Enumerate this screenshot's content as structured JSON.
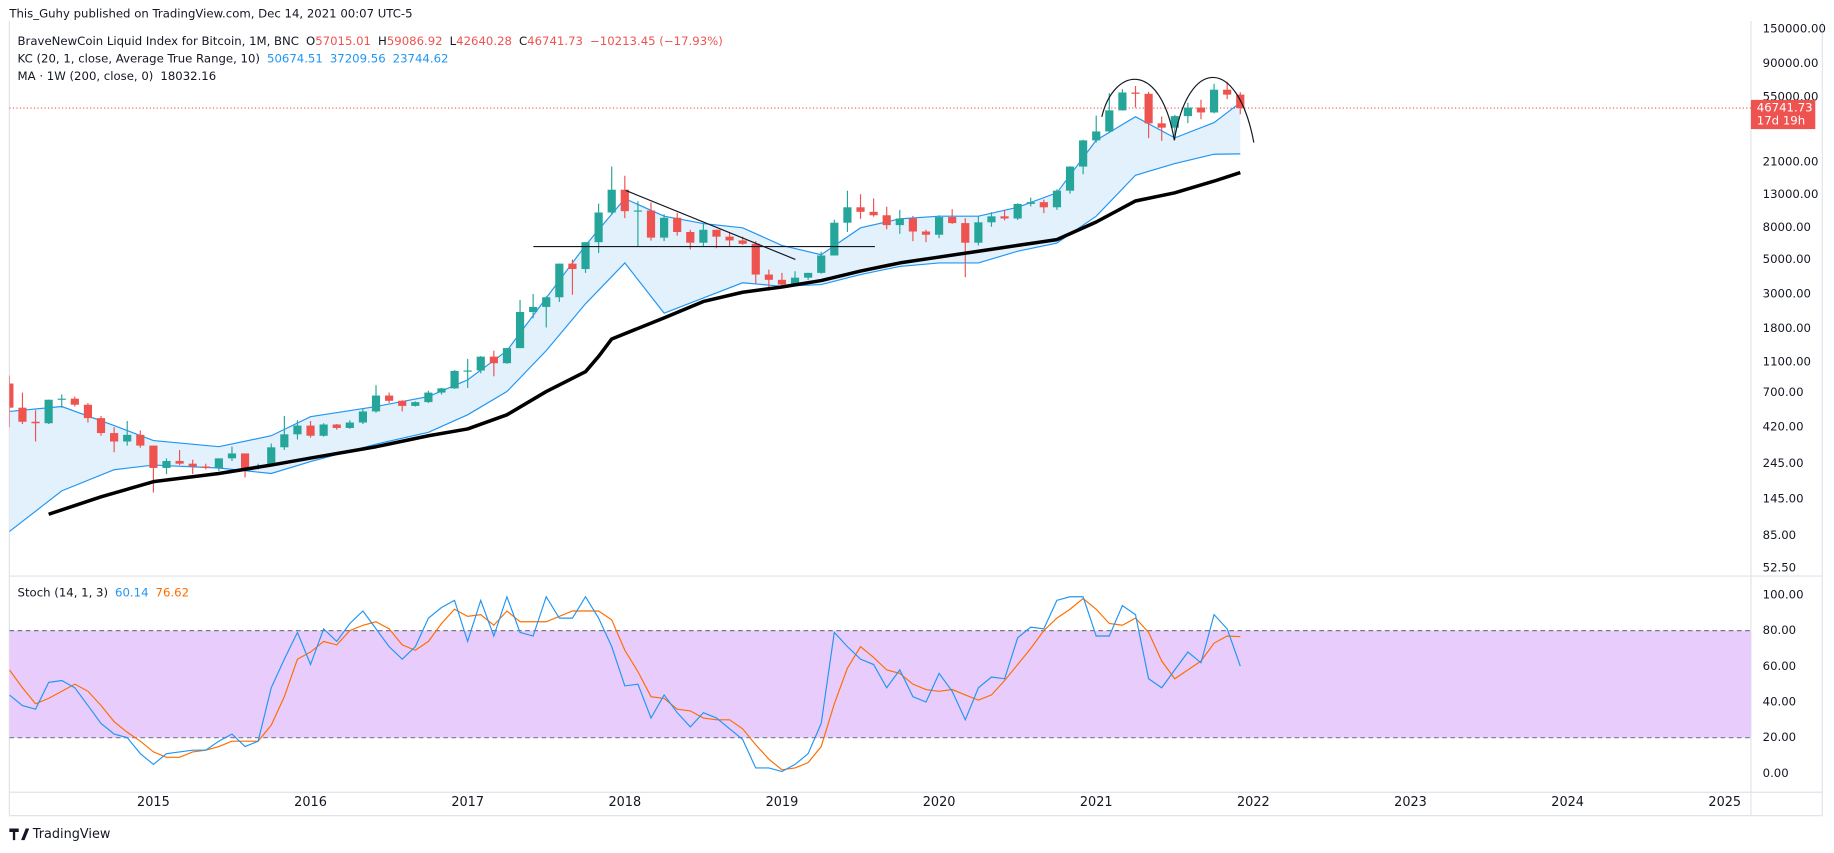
{
  "header": "This_Guhy published on TradingView.com, Dec 14, 2021 00:07 UTC-5",
  "footer": "TradingView",
  "chart_data": {
    "type": "candlestick",
    "log_scale": true,
    "grid": false,
    "up_color": "#26a69a",
    "down_color": "#ef5350",
    "legend": {
      "symbol": "BraveNewCoin Liquid Index for Bitcoin, 1M, BNC",
      "ohlc_letters": [
        "O",
        "H",
        "L",
        "C"
      ],
      "change": "−10213.45 (−17.93%)",
      "kc_label": "KC (20, 1, close, Average True Range, 10)",
      "kc_basis": 37209.56,
      "ma_label": "MA · 1W (200, close, 0)"
    },
    "countdown": "17d 19h",
    "xlim": [
      "2014-02",
      "2025-03"
    ],
    "xticks": [
      "2015",
      "2016",
      "2017",
      "2018",
      "2019",
      "2020",
      "2021",
      "2022",
      "2023",
      "2024",
      "2025"
    ],
    "ylim": [
      46.6,
      169000
    ],
    "yticks": [
      {
        "value": 52.5,
        "label": "52.50"
      },
      {
        "value": 85,
        "label": "85.00"
      },
      {
        "value": 145,
        "label": "145.00"
      },
      {
        "value": 245,
        "label": "245.00"
      },
      {
        "value": 420,
        "label": "420.00"
      },
      {
        "value": 700,
        "label": "700.00"
      },
      {
        "value": 1100,
        "label": "1100.00"
      },
      {
        "value": 1800,
        "label": "1800.00"
      },
      {
        "value": 3000,
        "label": "3000.00"
      },
      {
        "value": 5000,
        "label": "5000.00"
      },
      {
        "value": 8000,
        "label": "8000.00"
      },
      {
        "value": 13000,
        "label": "13000.00"
      },
      {
        "value": 21000,
        "label": "21000.00"
      },
      {
        "value": 55000,
        "label": "55000.00"
      },
      {
        "value": 90000,
        "label": "90000.00"
      },
      {
        "value": 150000,
        "label": "150000.00"
      }
    ],
    "x": [
      "2014-02",
      "2014-03",
      "2014-04",
      "2014-05",
      "2014-06",
      "2014-07",
      "2014-08",
      "2014-09",
      "2014-10",
      "2014-11",
      "2014-12",
      "2015-01",
      "2015-02",
      "2015-03",
      "2015-04",
      "2015-05",
      "2015-06",
      "2015-07",
      "2015-08",
      "2015-09",
      "2015-10",
      "2015-11",
      "2015-12",
      "2016-01",
      "2016-02",
      "2016-03",
      "2016-04",
      "2016-05",
      "2016-06",
      "2016-07",
      "2016-08",
      "2016-09",
      "2016-10",
      "2016-11",
      "2016-12",
      "2017-01",
      "2017-02",
      "2017-03",
      "2017-04",
      "2017-05",
      "2017-06",
      "2017-07",
      "2017-08",
      "2017-09",
      "2017-10",
      "2017-11",
      "2017-12",
      "2018-01",
      "2018-02",
      "2018-03",
      "2018-04",
      "2018-05",
      "2018-06",
      "2018-07",
      "2018-08",
      "2018-09",
      "2018-10",
      "2018-11",
      "2018-12",
      "2019-01",
      "2019-02",
      "2019-03",
      "2019-04",
      "2019-05",
      "2019-06",
      "2019-07",
      "2019-08",
      "2019-09",
      "2019-10",
      "2019-11",
      "2019-12",
      "2020-01",
      "2020-02",
      "2020-03",
      "2020-04",
      "2020-05",
      "2020-06",
      "2020-07",
      "2020-08",
      "2020-09",
      "2020-10",
      "2020-11",
      "2020-12",
      "2021-01",
      "2021-02",
      "2021-03",
      "2021-04",
      "2021-05",
      "2021-06",
      "2021-07",
      "2021-08",
      "2021-09",
      "2021-10",
      "2021-11",
      "2021-12"
    ],
    "open": [
      800,
      560,
      455,
      445,
      630,
      640,
      585,
      480,
      385,
      340,
      375,
      320,
      230,
      255,
      245,
      235,
      230,
      265,
      285,
      230,
      237,
      312,
      378,
      430,
      370,
      437,
      415,
      450,
      530,
      670,
      620,
      575,
      608,
      700,
      745,
      965,
      970,
      1190,
      1080,
      1350,
      2300,
      2480,
      2860,
      4700,
      4340,
      6450,
      10000,
      14000,
      10200,
      10300,
      6900,
      9250,
      7500,
      6400,
      7750,
      7000,
      6620,
      6300,
      4000,
      3700,
      3450,
      3820,
      4100,
      5300,
      8600,
      10800,
      10100,
      9600,
      8300,
      9150,
      7550,
      7200,
      9350,
      8550,
      6400,
      8650,
      9450,
      9150,
      11350,
      11650,
      10800,
      13800,
      19700,
      29000,
      33100,
      45200,
      58800,
      57700,
      37300,
      35000,
      41500,
      47100,
      43800,
      61300,
      57015.01
    ],
    "high": [
      900,
      700,
      540,
      630,
      680,
      660,
      600,
      495,
      420,
      460,
      400,
      320,
      265,
      300,
      260,
      245,
      265,
      315,
      285,
      245,
      330,
      495,
      465,
      460,
      445,
      440,
      465,
      550,
      780,
      700,
      625,
      615,
      720,
      750,
      975,
      1150,
      1200,
      1300,
      1350,
      2750,
      3000,
      2900,
      4700,
      5000,
      6450,
      11400,
      19700,
      17200,
      11800,
      11600,
      9750,
      9950,
      7750,
      8450,
      7750,
      7400,
      7000,
      6550,
      4300,
      4100,
      4200,
      4100,
      5600,
      9000,
      13800,
      13100,
      12300,
      10900,
      10400,
      9500,
      7750,
      9600,
      10500,
      9200,
      9450,
      10050,
      10400,
      11450,
      12450,
      12100,
      14100,
      19800,
      29300,
      41900,
      58300,
      61700,
      64800,
      59500,
      41300,
      42300,
      50500,
      52900,
      67000,
      69000,
      59086.92
    ],
    "low": [
      420,
      440,
      340,
      440,
      560,
      570,
      450,
      370,
      290,
      320,
      310,
      160,
      210,
      240,
      210,
      225,
      220,
      255,
      200,
      225,
      235,
      300,
      350,
      360,
      365,
      405,
      410,
      440,
      520,
      600,
      530,
      570,
      600,
      680,
      740,
      750,
      930,
      890,
      1070,
      1350,
      2100,
      1830,
      2670,
      2970,
      4100,
      5500,
      9800,
      9200,
      6000,
      6600,
      6550,
      7100,
      5800,
      6100,
      5900,
      6100,
      6200,
      3500,
      3150,
      3400,
      3400,
      3700,
      4050,
      5300,
      7500,
      9100,
      9400,
      7800,
      7300,
      6550,
      6450,
      6850,
      8450,
      3850,
      6150,
      8100,
      8900,
      8950,
      10950,
      9900,
      10400,
      13200,
      17600,
      28100,
      32300,
      45000,
      47100,
      30000,
      28800,
      29300,
      37400,
      39600,
      43300,
      53300,
      42640.28
    ],
    "close": [
      560,
      455,
      445,
      630,
      640,
      585,
      480,
      385,
      340,
      375,
      320,
      230,
      255,
      245,
      235,
      230,
      265,
      285,
      230,
      237,
      312,
      378,
      430,
      370,
      437,
      415,
      450,
      530,
      670,
      620,
      575,
      608,
      700,
      745,
      965,
      970,
      1190,
      1080,
      1350,
      2300,
      2480,
      2860,
      4700,
      4340,
      6450,
      10000,
      14000,
      10200,
      10300,
      6900,
      9250,
      7500,
      6400,
      7750,
      7000,
      6620,
      6300,
      4000,
      3700,
      3450,
      3820,
      4100,
      5300,
      8600,
      10800,
      10100,
      9600,
      8300,
      9150,
      7550,
      7200,
      9350,
      8550,
      6400,
      8650,
      9450,
      9150,
      11350,
      11650,
      10800,
      13800,
      19700,
      29000,
      33100,
      45200,
      58800,
      57700,
      37300,
      35000,
      41500,
      47100,
      43800,
      61300,
      57000,
      46741.73
    ],
    "keltner": {
      "color": "#2196f3",
      "fill": "#e3f1fd",
      "x": [
        "2014-02",
        "2014-06",
        "2014-10",
        "2015-01",
        "2015-06",
        "2015-10",
        "2016-01",
        "2016-06",
        "2016-10",
        "2017-01",
        "2017-04",
        "2017-07",
        "2017-10",
        "2018-01",
        "2018-04",
        "2018-07",
        "2018-10",
        "2019-01",
        "2019-04",
        "2019-07",
        "2019-10",
        "2020-01",
        "2020-04",
        "2020-07",
        "2020-10",
        "2021-01",
        "2021-04",
        "2021-07",
        "2021-10",
        "2021-12"
      ],
      "upper": [
        530,
        570,
        430,
        345,
        315,
        370,
        490,
        570,
        660,
        845,
        1300,
        2830,
        6150,
        12270,
        9470,
        8500,
        7970,
        6150,
        5360,
        7970,
        9100,
        9470,
        9470,
        10800,
        13370,
        29100,
        41100,
        30100,
        37700,
        50674.51
      ],
      "lower": [
        90,
        164,
        224,
        240,
        230,
        212,
        253,
        327,
        389,
        504,
        711,
        1300,
        2595,
        4750,
        2260,
        2830,
        3540,
        3365,
        3450,
        4000,
        4510,
        4750,
        4750,
        5640,
        6370,
        9470,
        17330,
        20600,
        23650,
        23744.62
      ]
    },
    "ma": {
      "color": "#000000",
      "x": [
        "2014-05",
        "2014-09",
        "2015-01",
        "2015-06",
        "2015-10",
        "2016-01",
        "2016-06",
        "2016-10",
        "2017-01",
        "2017-04",
        "2017-07",
        "2017-10",
        "2017-11",
        "2017-12",
        "2018-04",
        "2018-07",
        "2018-10",
        "2019-01",
        "2019-04",
        "2019-07",
        "2019-10",
        "2020-01",
        "2020-04",
        "2020-07",
        "2020-10",
        "2021-01",
        "2021-04",
        "2021-07",
        "2021-10",
        "2021-12"
      ],
      "values": [
        116,
        150,
        188,
        212,
        240,
        266,
        315,
        370,
        409,
        504,
        711,
        953,
        1194,
        1546,
        2110,
        2690,
        3080,
        3330,
        3660,
        4210,
        4750,
        5180,
        5640,
        6150,
        6700,
        8690,
        11850,
        13370,
        15890,
        18032.16
      ]
    },
    "stoch": {
      "label": "Stoch (14, 1, 3)",
      "k_color": "#2196f3",
      "d_color": "#ff6d00",
      "band_color": "#e8cdfc",
      "ylim": [
        -10.6,
        110.6
      ],
      "yticks": [
        {
          "value": 0,
          "label": "0.00"
        },
        {
          "value": 20,
          "label": "20.00"
        },
        {
          "value": 40,
          "label": "40.00"
        },
        {
          "value": 60,
          "label": "60.00"
        },
        {
          "value": 80,
          "label": "80.00"
        },
        {
          "value": 100,
          "label": "100.00"
        }
      ],
      "band": [
        20,
        80
      ],
      "k": [
        44,
        38,
        36,
        51,
        52,
        48,
        38,
        28,
        22,
        20,
        11,
        5,
        11,
        12,
        13,
        13,
        18,
        22,
        15,
        18,
        48,
        64,
        79,
        61,
        81,
        74,
        84,
        91,
        81,
        71,
        64,
        71,
        87,
        93,
        97,
        74,
        97,
        77,
        99,
        79,
        77,
        99,
        87,
        87,
        99,
        87,
        71,
        49,
        50,
        31,
        44,
        34,
        26,
        34,
        31,
        25,
        19,
        3,
        3,
        1,
        5,
        11,
        28,
        79,
        71,
        64,
        61,
        48,
        58,
        43,
        40,
        56,
        46,
        30,
        48,
        54,
        53,
        76,
        82,
        81,
        97,
        99,
        99,
        77,
        77,
        94,
        89,
        53,
        48,
        58,
        68,
        62,
        89,
        81,
        60.14
      ],
      "d": [
        58,
        48,
        39,
        42,
        46,
        50,
        46,
        38,
        29,
        23,
        18,
        12,
        9,
        9,
        12,
        13,
        15,
        18,
        18,
        18,
        27,
        43,
        64,
        68,
        74,
        72,
        80,
        83,
        85,
        81,
        72,
        69,
        74,
        84,
        92,
        88,
        89,
        83,
        91,
        85,
        85,
        85,
        88,
        91,
        91,
        91,
        86,
        69,
        57,
        43,
        42,
        36,
        35,
        31,
        30,
        30,
        25,
        16,
        8,
        2,
        3,
        6,
        15,
        39,
        59,
        71,
        65,
        58,
        56,
        50,
        47,
        46,
        47,
        44,
        41,
        44,
        52,
        61,
        70,
        80,
        87,
        92,
        98,
        92,
        84,
        83,
        87,
        79,
        63,
        53,
        58,
        63,
        73,
        77,
        76.62
      ]
    }
  }
}
